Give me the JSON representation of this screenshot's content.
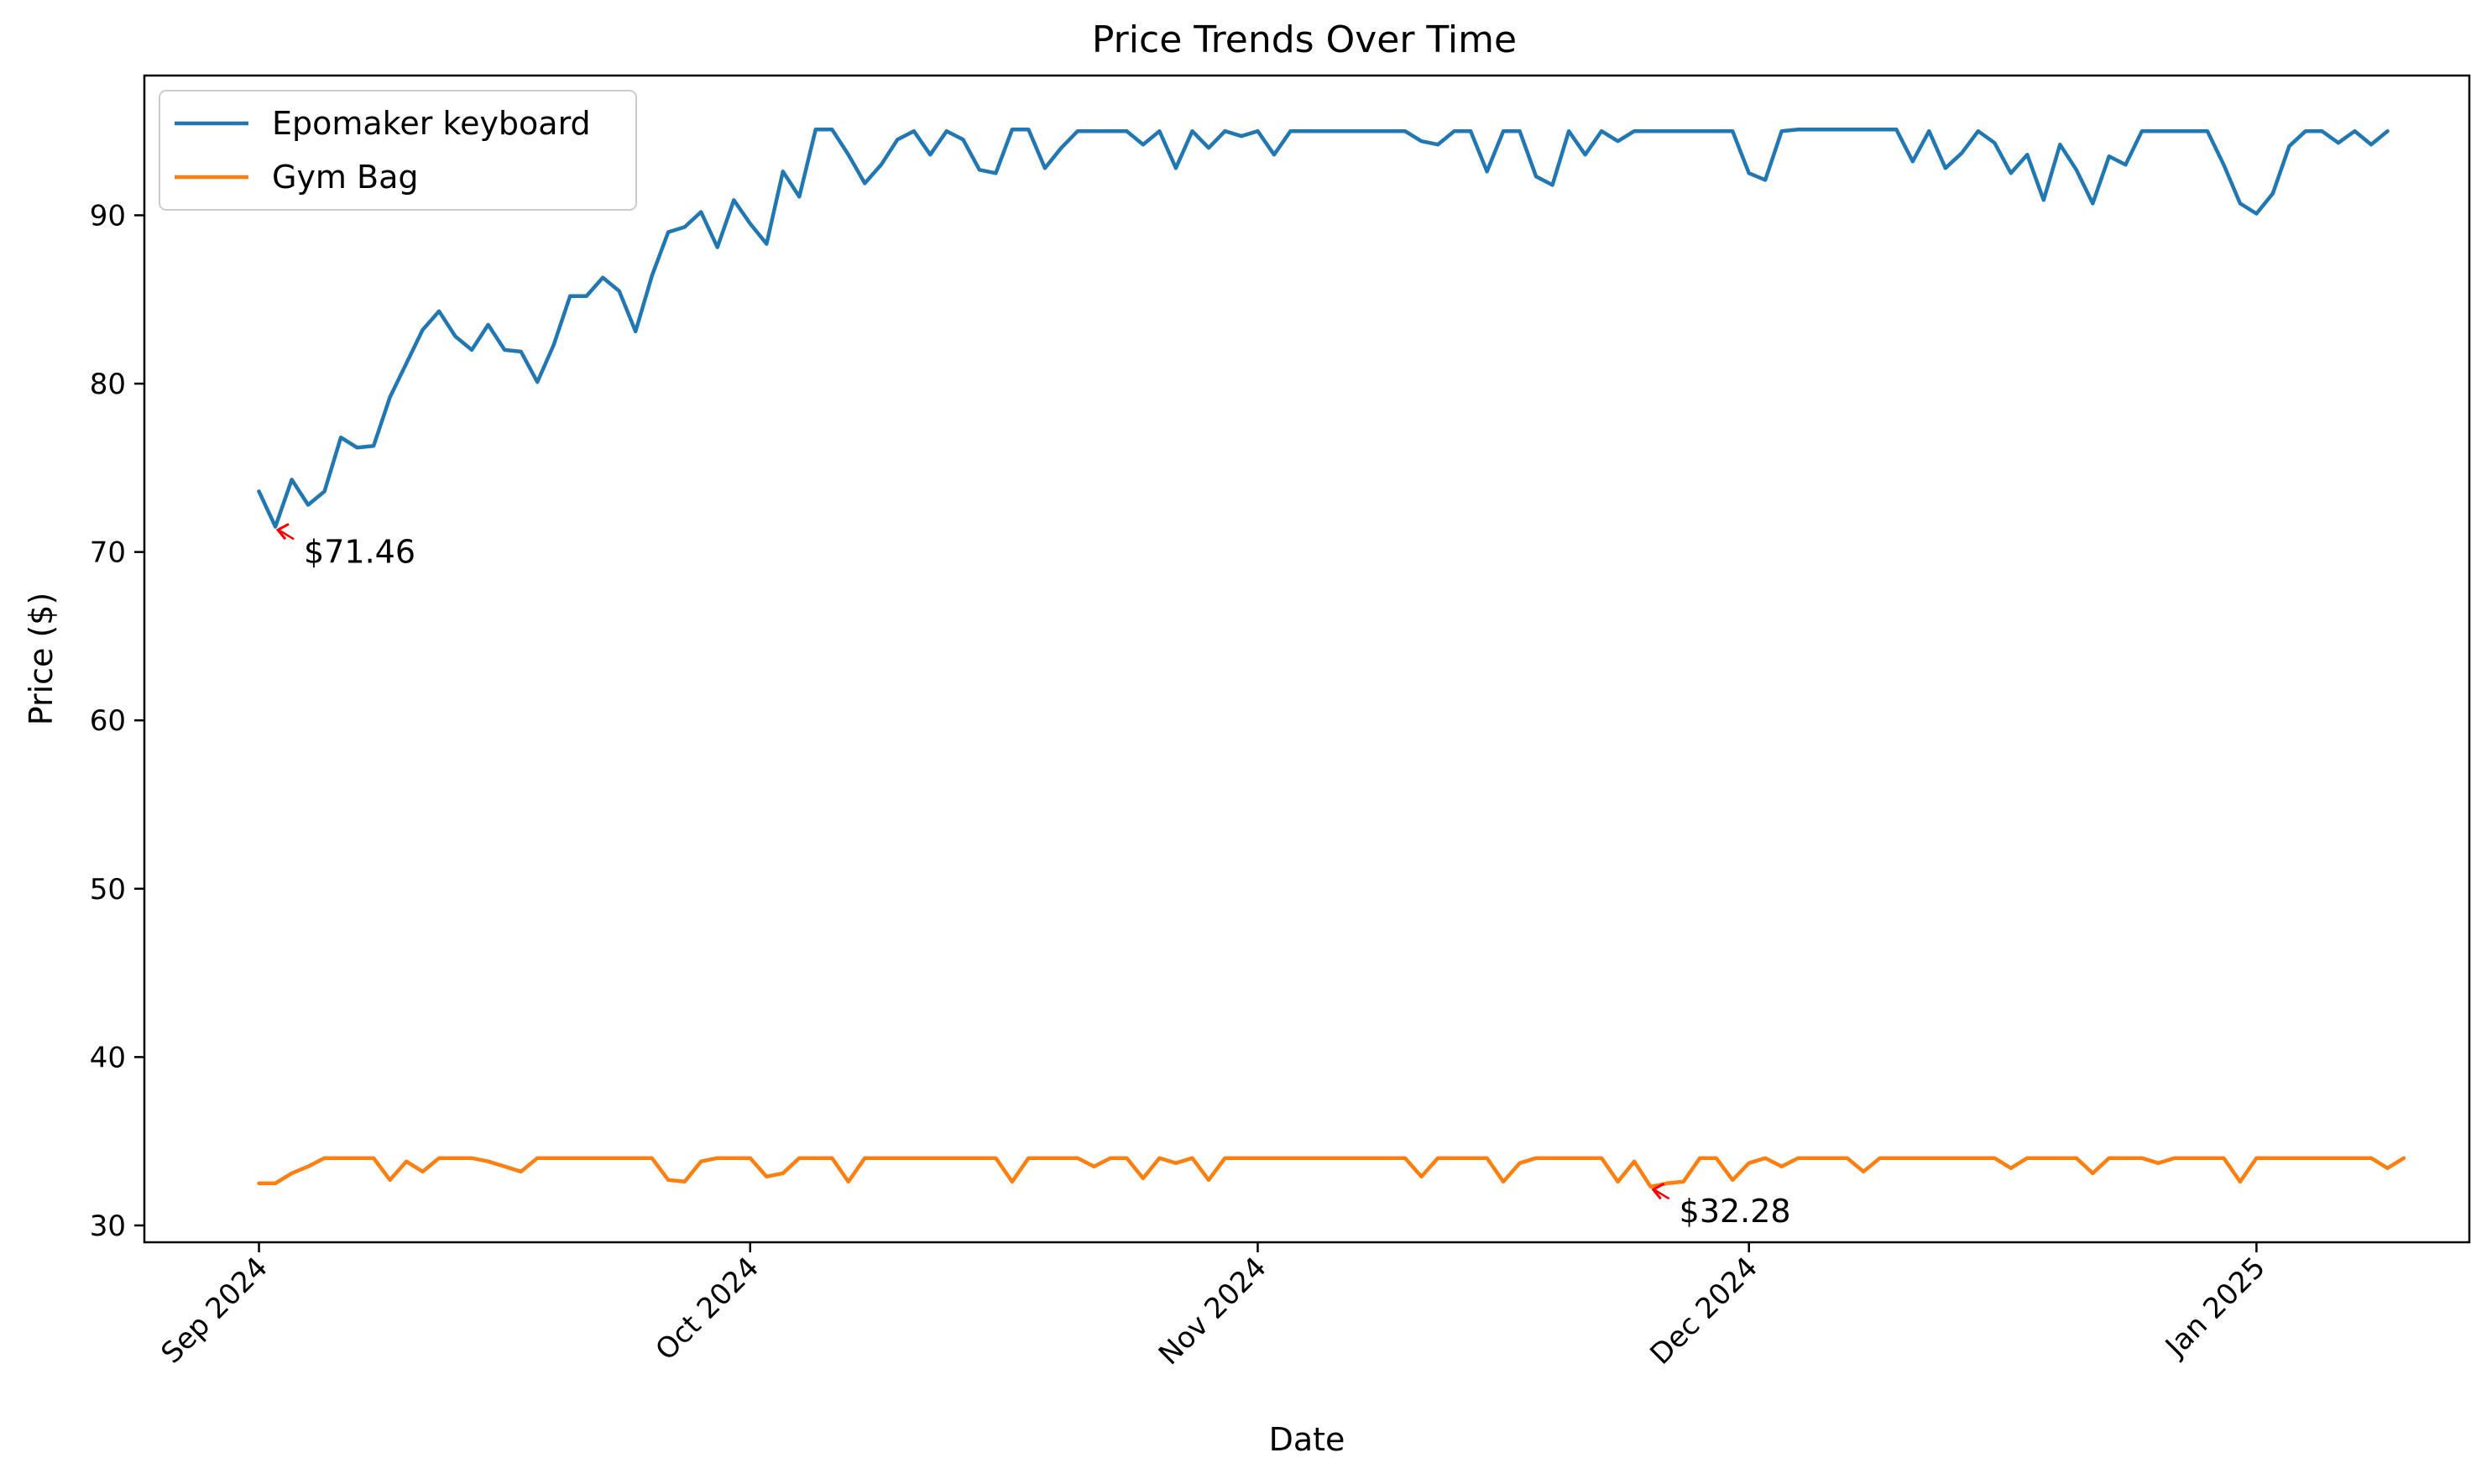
{
  "chart_data": {
    "type": "line",
    "title": "Price Trends Over Time",
    "xlabel": "Date",
    "ylabel": "Price ($)",
    "x_start": "2024-09-01",
    "x_end": "2025-01-08",
    "x_ticks": [
      {
        "date": "2024-09-01",
        "label": "Sep 2024"
      },
      {
        "date": "2024-10-01",
        "label": "Oct 2024"
      },
      {
        "date": "2024-11-01",
        "label": "Nov 2024"
      },
      {
        "date": "2024-12-01",
        "label": "Dec 2024"
      },
      {
        "date": "2025-01-01",
        "label": "Jan 2025"
      }
    ],
    "y_ticks": [
      30,
      40,
      50,
      60,
      70,
      80,
      90
    ],
    "ylim": [
      29.0,
      98.3
    ],
    "xlim": [
      "2024-08-25",
      "2025-01-14"
    ],
    "grid": false,
    "legend_position": "upper-left",
    "series": [
      {
        "name": "Epomaker keyboard",
        "color": "#1f77b4",
        "points": [
          [
            "2024-09-01",
            73.6
          ],
          [
            "2024-09-02",
            71.5
          ],
          [
            "2024-09-03",
            74.3
          ],
          [
            "2024-09-04",
            72.8
          ],
          [
            "2024-09-05",
            73.6
          ],
          [
            "2024-09-06",
            76.8
          ],
          [
            "2024-09-07",
            76.2
          ],
          [
            "2024-09-08",
            76.3
          ],
          [
            "2024-09-09",
            79.2
          ],
          [
            "2024-09-10",
            81.2
          ],
          [
            "2024-09-11",
            83.2
          ],
          [
            "2024-09-12",
            84.3
          ],
          [
            "2024-09-13",
            82.8
          ],
          [
            "2024-09-14",
            82.0
          ],
          [
            "2024-09-15",
            83.5
          ],
          [
            "2024-09-16",
            82.0
          ],
          [
            "2024-09-17",
            81.9
          ],
          [
            "2024-09-18",
            80.1
          ],
          [
            "2024-09-19",
            82.3
          ],
          [
            "2024-09-20",
            85.2
          ],
          [
            "2024-09-21",
            85.2
          ],
          [
            "2024-09-22",
            86.3
          ],
          [
            "2024-09-23",
            85.5
          ],
          [
            "2024-09-24",
            83.1
          ],
          [
            "2024-09-25",
            86.4
          ],
          [
            "2024-09-26",
            89.0
          ],
          [
            "2024-09-27",
            89.3
          ],
          [
            "2024-09-28",
            90.2
          ],
          [
            "2024-09-29",
            88.1
          ],
          [
            "2024-09-30",
            90.9
          ],
          [
            "2024-10-01",
            89.5
          ],
          [
            "2024-10-02",
            88.3
          ],
          [
            "2024-10-03",
            92.6
          ],
          [
            "2024-10-04",
            91.1
          ],
          [
            "2024-10-05",
            95.1
          ],
          [
            "2024-10-06",
            95.1
          ],
          [
            "2024-10-07",
            93.6
          ],
          [
            "2024-10-08",
            91.9
          ],
          [
            "2024-10-09",
            93.0
          ],
          [
            "2024-10-10",
            94.5
          ],
          [
            "2024-10-11",
            95.0
          ],
          [
            "2024-10-12",
            93.6
          ],
          [
            "2024-10-13",
            95.0
          ],
          [
            "2024-10-14",
            94.5
          ],
          [
            "2024-10-15",
            92.7
          ],
          [
            "2024-10-16",
            92.5
          ],
          [
            "2024-10-17",
            95.1
          ],
          [
            "2024-10-18",
            95.1
          ],
          [
            "2024-10-19",
            92.8
          ],
          [
            "2024-10-20",
            94.0
          ],
          [
            "2024-10-21",
            95.0
          ],
          [
            "2024-10-22",
            95.0
          ],
          [
            "2024-10-23",
            95.0
          ],
          [
            "2024-10-24",
            95.0
          ],
          [
            "2024-10-25",
            94.2
          ],
          [
            "2024-10-26",
            95.0
          ],
          [
            "2024-10-27",
            92.8
          ],
          [
            "2024-10-28",
            95.0
          ],
          [
            "2024-10-29",
            94.0
          ],
          [
            "2024-10-30",
            95.0
          ],
          [
            "2024-10-31",
            94.7
          ],
          [
            "2024-11-01",
            95.0
          ],
          [
            "2024-11-02",
            93.6
          ],
          [
            "2024-11-03",
            95.0
          ],
          [
            "2024-11-04",
            95.0
          ],
          [
            "2024-11-05",
            95.0
          ],
          [
            "2024-11-06",
            95.0
          ],
          [
            "2024-11-07",
            95.0
          ],
          [
            "2024-11-08",
            95.0
          ],
          [
            "2024-11-09",
            95.0
          ],
          [
            "2024-11-10",
            95.0
          ],
          [
            "2024-11-11",
            94.4
          ],
          [
            "2024-11-12",
            94.2
          ],
          [
            "2024-11-13",
            95.0
          ],
          [
            "2024-11-14",
            95.0
          ],
          [
            "2024-11-15",
            92.6
          ],
          [
            "2024-11-16",
            95.0
          ],
          [
            "2024-11-17",
            95.0
          ],
          [
            "2024-11-18",
            92.3
          ],
          [
            "2024-11-19",
            91.8
          ],
          [
            "2024-11-20",
            95.0
          ],
          [
            "2024-11-21",
            93.6
          ],
          [
            "2024-11-22",
            95.0
          ],
          [
            "2024-11-23",
            94.4
          ],
          [
            "2024-11-24",
            95.0
          ],
          [
            "2024-11-25",
            95.0
          ],
          [
            "2024-11-26",
            95.0
          ],
          [
            "2024-11-27",
            95.0
          ],
          [
            "2024-11-28",
            95.0
          ],
          [
            "2024-11-29",
            95.0
          ],
          [
            "2024-11-30",
            95.0
          ],
          [
            "2024-12-01",
            92.5
          ],
          [
            "2024-12-02",
            92.1
          ],
          [
            "2024-12-03",
            95.0
          ],
          [
            "2024-12-04",
            95.1
          ],
          [
            "2024-12-05",
            95.1
          ],
          [
            "2024-12-06",
            95.1
          ],
          [
            "2024-12-07",
            95.1
          ],
          [
            "2024-12-08",
            95.1
          ],
          [
            "2024-12-09",
            95.1
          ],
          [
            "2024-12-10",
            95.1
          ],
          [
            "2024-12-11",
            93.2
          ],
          [
            "2024-12-12",
            95.0
          ],
          [
            "2024-12-13",
            92.8
          ],
          [
            "2024-12-14",
            93.7
          ],
          [
            "2024-12-15",
            95.0
          ],
          [
            "2024-12-16",
            94.3
          ],
          [
            "2024-12-17",
            92.5
          ],
          [
            "2024-12-18",
            93.6
          ],
          [
            "2024-12-19",
            90.9
          ],
          [
            "2024-12-20",
            94.2
          ],
          [
            "2024-12-21",
            92.7
          ],
          [
            "2024-12-22",
            90.7
          ],
          [
            "2024-12-23",
            93.5
          ],
          [
            "2024-12-24",
            93.0
          ],
          [
            "2024-12-25",
            95.0
          ],
          [
            "2024-12-26",
            95.0
          ],
          [
            "2024-12-27",
            95.0
          ],
          [
            "2024-12-28",
            95.0
          ],
          [
            "2024-12-29",
            95.0
          ],
          [
            "2024-12-30",
            93.0
          ],
          [
            "2024-12-31",
            90.7
          ],
          [
            "2025-01-01",
            90.1
          ],
          [
            "2025-01-02",
            91.3
          ],
          [
            "2025-01-03",
            94.1
          ],
          [
            "2025-01-04",
            95.0
          ],
          [
            "2025-01-05",
            95.0
          ],
          [
            "2025-01-06",
            94.3
          ],
          [
            "2025-01-07",
            95.0
          ],
          [
            "2025-01-08",
            94.2
          ],
          [
            "2025-01-09",
            95.0
          ]
        ]
      },
      {
        "name": "Gym Bag",
        "color": "#ff7f0e",
        "points": [
          [
            "2024-09-01",
            32.5
          ],
          [
            "2024-09-02",
            32.5
          ],
          [
            "2024-09-03",
            33.1
          ],
          [
            "2024-09-04",
            33.5
          ],
          [
            "2024-09-05",
            34.0
          ],
          [
            "2024-09-06",
            34.0
          ],
          [
            "2024-09-07",
            34.0
          ],
          [
            "2024-09-08",
            34.0
          ],
          [
            "2024-09-09",
            32.7
          ],
          [
            "2024-09-10",
            33.8
          ],
          [
            "2024-09-11",
            33.2
          ],
          [
            "2024-09-12",
            34.0
          ],
          [
            "2024-09-13",
            34.0
          ],
          [
            "2024-09-14",
            34.0
          ],
          [
            "2024-09-15",
            33.8
          ],
          [
            "2024-09-16",
            33.5
          ],
          [
            "2024-09-17",
            33.2
          ],
          [
            "2024-09-18",
            34.0
          ],
          [
            "2024-09-19",
            34.0
          ],
          [
            "2024-09-20",
            34.0
          ],
          [
            "2024-09-21",
            34.0
          ],
          [
            "2024-09-22",
            34.0
          ],
          [
            "2024-09-23",
            34.0
          ],
          [
            "2024-09-24",
            34.0
          ],
          [
            "2024-09-25",
            34.0
          ],
          [
            "2024-09-26",
            32.7
          ],
          [
            "2024-09-27",
            32.6
          ],
          [
            "2024-09-28",
            33.8
          ],
          [
            "2024-09-29",
            34.0
          ],
          [
            "2024-09-30",
            34.0
          ],
          [
            "2024-10-01",
            34.0
          ],
          [
            "2024-10-02",
            32.9
          ],
          [
            "2024-10-03",
            33.1
          ],
          [
            "2024-10-04",
            34.0
          ],
          [
            "2024-10-05",
            34.0
          ],
          [
            "2024-10-06",
            34.0
          ],
          [
            "2024-10-07",
            32.6
          ],
          [
            "2024-10-08",
            34.0
          ],
          [
            "2024-10-09",
            34.0
          ],
          [
            "2024-10-10",
            34.0
          ],
          [
            "2024-10-11",
            34.0
          ],
          [
            "2024-10-12",
            34.0
          ],
          [
            "2024-10-13",
            34.0
          ],
          [
            "2024-10-14",
            34.0
          ],
          [
            "2024-10-15",
            34.0
          ],
          [
            "2024-10-16",
            34.0
          ],
          [
            "2024-10-17",
            32.6
          ],
          [
            "2024-10-18",
            34.0
          ],
          [
            "2024-10-19",
            34.0
          ],
          [
            "2024-10-20",
            34.0
          ],
          [
            "2024-10-21",
            34.0
          ],
          [
            "2024-10-22",
            33.5
          ],
          [
            "2024-10-23",
            34.0
          ],
          [
            "2024-10-24",
            34.0
          ],
          [
            "2024-10-25",
            32.8
          ],
          [
            "2024-10-26",
            34.0
          ],
          [
            "2024-10-27",
            33.7
          ],
          [
            "2024-10-28",
            34.0
          ],
          [
            "2024-10-29",
            32.7
          ],
          [
            "2024-10-30",
            34.0
          ],
          [
            "2024-10-31",
            34.0
          ],
          [
            "2024-11-01",
            34.0
          ],
          [
            "2024-11-02",
            34.0
          ],
          [
            "2024-11-03",
            34.0
          ],
          [
            "2024-11-04",
            34.0
          ],
          [
            "2024-11-05",
            34.0
          ],
          [
            "2024-11-06",
            34.0
          ],
          [
            "2024-11-07",
            34.0
          ],
          [
            "2024-11-08",
            34.0
          ],
          [
            "2024-11-09",
            34.0
          ],
          [
            "2024-11-10",
            34.0
          ],
          [
            "2024-11-11",
            32.9
          ],
          [
            "2024-11-12",
            34.0
          ],
          [
            "2024-11-13",
            34.0
          ],
          [
            "2024-11-14",
            34.0
          ],
          [
            "2024-11-15",
            34.0
          ],
          [
            "2024-11-16",
            32.6
          ],
          [
            "2024-11-17",
            33.7
          ],
          [
            "2024-11-18",
            34.0
          ],
          [
            "2024-11-19",
            34.0
          ],
          [
            "2024-11-20",
            34.0
          ],
          [
            "2024-11-21",
            34.0
          ],
          [
            "2024-11-22",
            34.0
          ],
          [
            "2024-11-23",
            32.6
          ],
          [
            "2024-11-24",
            33.8
          ],
          [
            "2024-11-25",
            32.3
          ],
          [
            "2024-11-26",
            32.5
          ],
          [
            "2024-11-27",
            32.6
          ],
          [
            "2024-11-28",
            34.0
          ],
          [
            "2024-11-29",
            34.0
          ],
          [
            "2024-11-30",
            32.7
          ],
          [
            "2024-12-01",
            33.7
          ],
          [
            "2024-12-02",
            34.0
          ],
          [
            "2024-12-03",
            33.5
          ],
          [
            "2024-12-04",
            34.0
          ],
          [
            "2024-12-05",
            34.0
          ],
          [
            "2024-12-06",
            34.0
          ],
          [
            "2024-12-07",
            34.0
          ],
          [
            "2024-12-08",
            33.2
          ],
          [
            "2024-12-09",
            34.0
          ],
          [
            "2024-12-10",
            34.0
          ],
          [
            "2024-12-11",
            34.0
          ],
          [
            "2024-12-12",
            34.0
          ],
          [
            "2024-12-13",
            34.0
          ],
          [
            "2024-12-14",
            34.0
          ],
          [
            "2024-12-15",
            34.0
          ],
          [
            "2024-12-16",
            34.0
          ],
          [
            "2024-12-17",
            33.4
          ],
          [
            "2024-12-18",
            34.0
          ],
          [
            "2024-12-19",
            34.0
          ],
          [
            "2024-12-20",
            34.0
          ],
          [
            "2024-12-21",
            34.0
          ],
          [
            "2024-12-22",
            33.1
          ],
          [
            "2024-12-23",
            34.0
          ],
          [
            "2024-12-24",
            34.0
          ],
          [
            "2024-12-25",
            34.0
          ],
          [
            "2024-12-26",
            33.7
          ],
          [
            "2024-12-27",
            34.0
          ],
          [
            "2024-12-28",
            34.0
          ],
          [
            "2024-12-29",
            34.0
          ],
          [
            "2024-12-30",
            34.0
          ],
          [
            "2024-12-31",
            32.6
          ],
          [
            "2025-01-01",
            34.0
          ],
          [
            "2025-01-02",
            34.0
          ],
          [
            "2025-01-03",
            34.0
          ],
          [
            "2025-01-04",
            34.0
          ],
          [
            "2025-01-05",
            34.0
          ],
          [
            "2025-01-06",
            34.0
          ],
          [
            "2025-01-07",
            34.0
          ],
          [
            "2025-01-08",
            34.0
          ],
          [
            "2025-01-09",
            33.4
          ],
          [
            "2025-01-10",
            34.0
          ]
        ]
      }
    ],
    "annotations": [
      {
        "series": "Epomaker keyboard",
        "date": "2024-09-02",
        "value": 71.46,
        "text": "$71.46",
        "arrow_color": "#ff0000"
      },
      {
        "series": "Gym Bag",
        "date": "2024-11-25",
        "value": 32.28,
        "text": "$32.28",
        "arrow_color": "#ff0000"
      }
    ]
  }
}
